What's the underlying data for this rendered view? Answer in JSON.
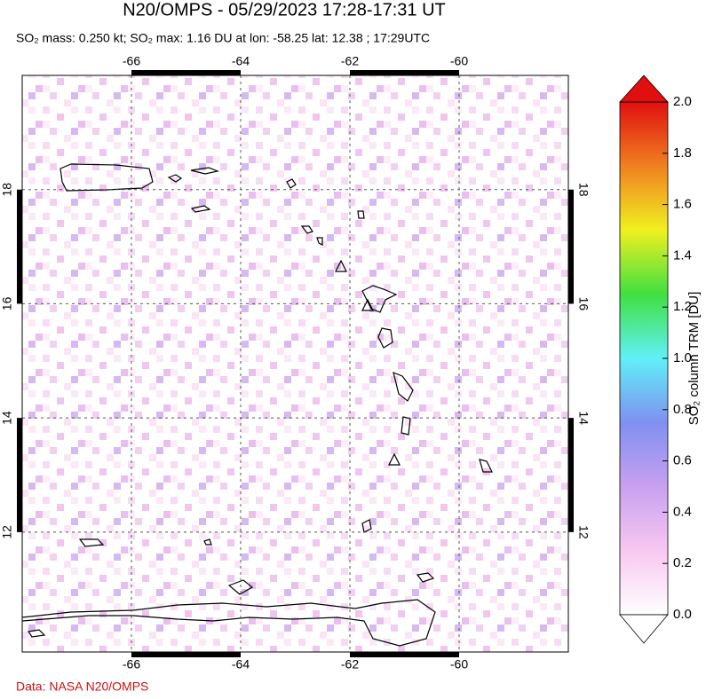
{
  "chart_data": {
    "type": "map",
    "title": "N20/OMPS - 05/29/2023 17:28-17:31 UT",
    "subtitle": "SO₂ mass: 0.250 kt; SO₂ max: 1.16 DU at lon: -58.25 lat: 12.38 ; 17:29UTC",
    "xlim": [
      -68,
      -58
    ],
    "xticks": [
      -66,
      -64,
      -62,
      -60
    ],
    "ylim": [
      9.9,
      20
    ],
    "yticks": [
      12,
      14,
      16,
      18
    ],
    "grid": true,
    "colorbar": {
      "label": "SO₂ column TRM [DU]",
      "lim": [
        0,
        2
      ],
      "ticks": [
        {
          "value": 0,
          "label": "0.0"
        },
        0.2,
        0.4,
        0.6,
        0.8,
        {
          "value": 1,
          "label": "1.0"
        },
        1.2,
        1.4,
        1.6,
        1.8,
        {
          "value": 2,
          "label": "2.0"
        }
      ],
      "colors": [
        "#ffffff",
        "#f8c8f0",
        "#c8a0f0",
        "#8090f0",
        "#60f0f8",
        "#40e040",
        "#f0f020",
        "#f08020",
        "#e01010"
      ]
    },
    "source": "Data: NASA N20/OMPS"
  }
}
